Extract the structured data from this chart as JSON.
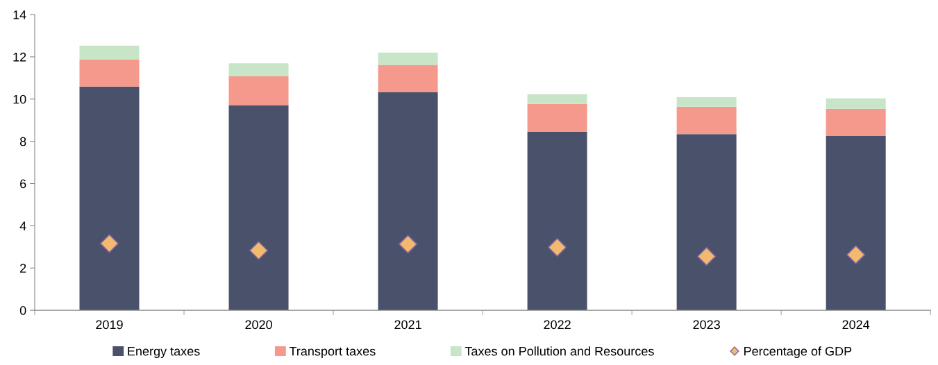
{
  "chart_data": {
    "type": "bar",
    "stacked": true,
    "categories": [
      "2019",
      "2020",
      "2021",
      "2022",
      "2023",
      "2024"
    ],
    "series": [
      {
        "name": "Energy taxes",
        "color": "#4a526b",
        "values": [
          10.59,
          9.71,
          10.32,
          8.45,
          8.34,
          8.25
        ]
      },
      {
        "name": "Transport taxes",
        "color": "#f4998c",
        "values": [
          1.29,
          1.37,
          1.3,
          1.32,
          1.3,
          1.29
        ]
      },
      {
        "name": "Taxes on Pollution and Resources",
        "color": "#c8e5c8",
        "values": [
          0.65,
          0.61,
          0.58,
          0.46,
          0.45,
          0.49
        ]
      },
      {
        "name": "Percentage of GDP",
        "type": "scatter",
        "marker": "diamond",
        "color": "#f3b96f",
        "values": [
          3.16,
          2.83,
          3.13,
          2.98,
          2.55,
          2.63
        ]
      }
    ],
    "ylim": [
      0,
      14
    ],
    "yticks": [
      0,
      2,
      4,
      6,
      8,
      10,
      12,
      14
    ],
    "grid": false,
    "legend": "bottom"
  }
}
